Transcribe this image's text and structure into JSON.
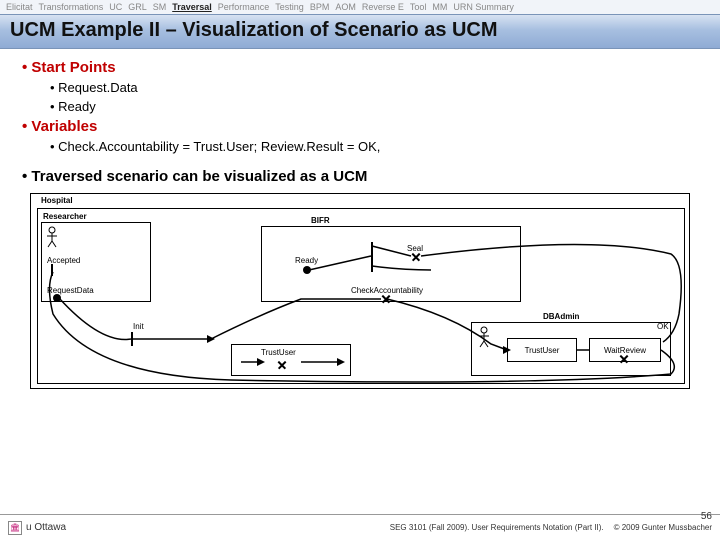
{
  "nav": {
    "items": [
      "Elicitat",
      "Transformations",
      "UC",
      "GRL",
      "SM",
      "Traversal",
      "Performance",
      "Testing",
      "BPM",
      "AOM",
      "Reverse E",
      "Tool",
      "MM",
      "URN Summary"
    ],
    "activeIndex": 5
  },
  "title": "UCM Example II – Visualization of Scenario as UCM",
  "bullets": {
    "b1": "Start Points",
    "b1a": "Request.Data",
    "b1b": "Ready",
    "b2": "Variables",
    "b2a": "Check.Accountability = Trust.User; Review.Result = OK,",
    "b3": "Traversed scenario can be visualized as a UCM"
  },
  "diagram": {
    "hospital": "Hospital",
    "researcher": "Researcher",
    "accepted": "Accepted",
    "requestData": "RequestData",
    "bifr": "BIFR",
    "ready": "Ready",
    "checkAcct": "CheckAccountability",
    "init": "Init",
    "trustUser": "TrustUser",
    "dbadmin": "DBAdmin",
    "waitReview": "WaitReview",
    "ok": "OK",
    "seal": "Seal"
  },
  "footer": {
    "uni": "u Ottawa",
    "course": "SEG 3101 (Fall 2009).  User Requirements Notation (Part II).",
    "copy": "© 2009 Gunter Mussbacher",
    "page": "56"
  },
  "colors": {
    "titleGrad1": "#d7e2f2",
    "titleGrad2": "#8fabd4",
    "red": "#c00000"
  }
}
